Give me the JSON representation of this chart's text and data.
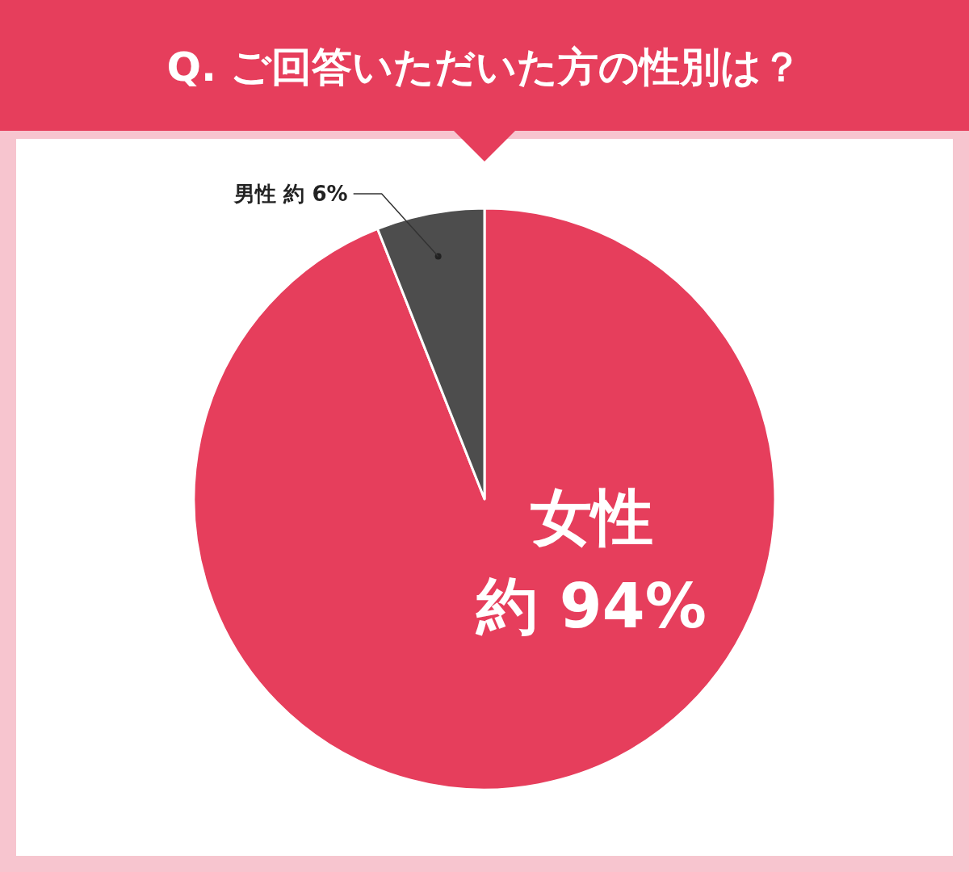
{
  "chart_data": {
    "type": "pie",
    "title": "Q. ご回答いただいた方の性別は？",
    "categories": [
      "女性",
      "男性"
    ],
    "values": [
      94,
      6
    ],
    "colors": [
      "#e63e5c",
      "#4d4d4d"
    ],
    "value_labels": [
      "約 94%",
      "約 6%"
    ]
  }
}
